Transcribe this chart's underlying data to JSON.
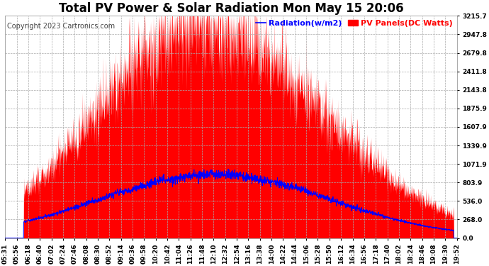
{
  "title": "Total PV Power & Solar Radiation Mon May 15 20:06",
  "copyright": "Copyright 2023 Cartronics.com",
  "legend_radiation": "Radiation(w/m2)",
  "legend_pv": "PV Panels(DC Watts)",
  "legend_color_radiation": "#0000ff",
  "legend_color_pv": "#ff0000",
  "y_max": 3215.7,
  "y_min": 0.0,
  "y_ticks": [
    0.0,
    268.0,
    536.0,
    803.9,
    1071.9,
    1339.9,
    1607.9,
    1875.9,
    2143.8,
    2411.8,
    2679.8,
    2947.8,
    3215.7
  ],
  "background_color": "#ffffff",
  "grid_color": "#aaaaaa",
  "pv_color": "#ff0000",
  "radiation_color": "#0000ff",
  "title_fontsize": 12,
  "copyright_fontsize": 7,
  "legend_fontsize": 8,
  "tick_fontsize": 6.5,
  "x_tick_rotation": 90,
  "x_labels": [
    "05:31",
    "05:56",
    "06:18",
    "06:40",
    "07:02",
    "07:24",
    "07:46",
    "08:08",
    "08:30",
    "08:52",
    "09:14",
    "09:36",
    "09:58",
    "10:20",
    "10:42",
    "11:04",
    "11:26",
    "11:48",
    "12:10",
    "12:32",
    "12:54",
    "13:16",
    "13:38",
    "14:00",
    "14:22",
    "14:44",
    "15:06",
    "15:28",
    "15:50",
    "16:12",
    "16:34",
    "16:56",
    "17:18",
    "17:40",
    "18:02",
    "18:24",
    "18:46",
    "19:08",
    "19:30",
    "19:52"
  ]
}
